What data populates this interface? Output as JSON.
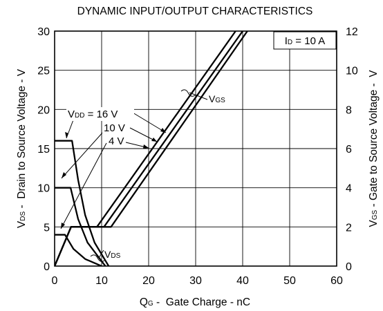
{
  "chart_data": {
    "type": "line",
    "title": "DYNAMIC INPUT/OUTPUT CHARACTERISTICS",
    "xlabel": {
      "main": "Q",
      "sub": "G",
      "rest": " -  Gate Charge - nC"
    },
    "ylabel_left": {
      "main": "V",
      "sub": "DS",
      "rest": " -  Drain to Source Voltage - V"
    },
    "ylabel_right": {
      "main": "V",
      "sub": "GS",
      "rest": " - Gate to Source Voltage -  V"
    },
    "xlim": [
      0,
      60
    ],
    "ylim_left": [
      0,
      30
    ],
    "ylim_right": [
      0,
      12
    ],
    "x_ticks": [
      "0",
      "10",
      "20",
      "30",
      "40",
      "50",
      "60"
    ],
    "y_left_ticks": [
      "0",
      "5",
      "10",
      "15",
      "20",
      "25",
      "30"
    ],
    "y_right_ticks": [
      "0",
      "2",
      "4",
      "6",
      "8",
      "10",
      "12"
    ],
    "grid": true,
    "condition": {
      "main": "I",
      "sub": "D",
      "rest": " = 10 A"
    },
    "vdd_label": {
      "main": "V",
      "sub": "DD",
      "rest": " = 16 V"
    },
    "label_10v": "10 V",
    "label_4v": "4 V",
    "vgs_label": {
      "main": "V",
      "sub": "GS"
    },
    "vds_label": {
      "main": "V",
      "sub": "DS"
    },
    "vds_series": [
      {
        "name": "16 V",
        "points": [
          [
            0,
            16
          ],
          [
            3.7,
            16
          ],
          [
            5,
            11
          ],
          [
            6.5,
            6.5
          ],
          [
            8.5,
            3
          ],
          [
            11.5,
            0
          ]
        ]
      },
      {
        "name": "10 V",
        "points": [
          [
            0,
            10
          ],
          [
            3.4,
            10
          ],
          [
            5,
            6
          ],
          [
            7,
            3
          ],
          [
            10.8,
            0
          ]
        ]
      },
      {
        "name": "4 V",
        "points": [
          [
            0,
            4
          ],
          [
            2.2,
            4
          ],
          [
            4,
            2.2
          ],
          [
            6.5,
            0.9
          ],
          [
            10,
            0
          ]
        ]
      }
    ],
    "vgs_series": [
      {
        "name": "16 V",
        "points": [
          [
            0,
            0
          ],
          [
            3.5,
            2
          ],
          [
            12,
            2
          ],
          [
            41,
            12
          ]
        ]
      },
      {
        "name": "10 V",
        "points": [
          [
            0,
            0
          ],
          [
            3.5,
            2
          ],
          [
            10.5,
            2
          ],
          [
            40,
            12
          ]
        ]
      },
      {
        "name": "4 V",
        "points": [
          [
            0,
            0
          ],
          [
            3.5,
            2
          ],
          [
            9,
            2
          ],
          [
            38.5,
            12
          ]
        ]
      }
    ]
  }
}
